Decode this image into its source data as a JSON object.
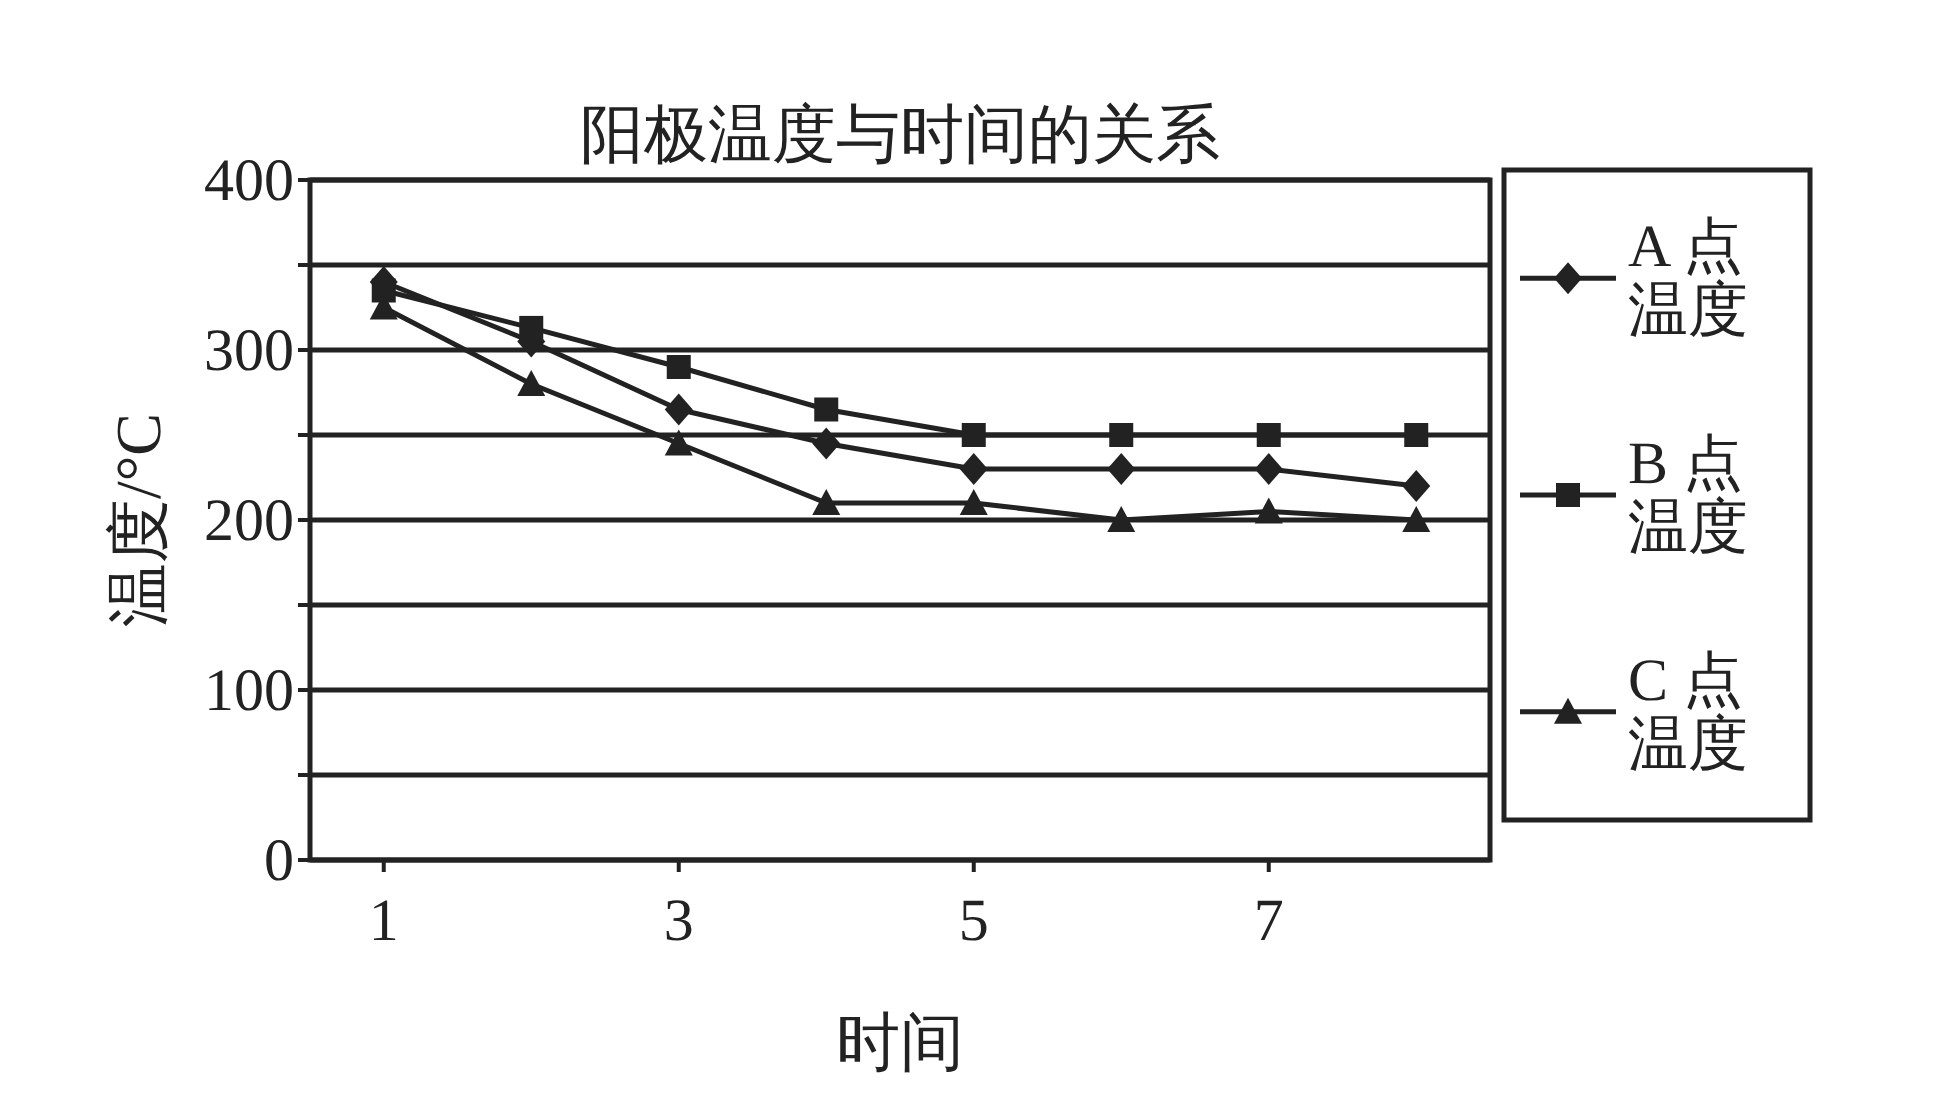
{
  "chart_data": {
    "type": "line",
    "title": "阳极温度与时间的关系",
    "xlabel": "时间",
    "ylabel": "温度/°C",
    "x": [
      1,
      2,
      3,
      4,
      5,
      6,
      7,
      8
    ],
    "xlim": [
      0.5,
      8.5
    ],
    "xticks": [
      1,
      3,
      5,
      7
    ],
    "ylim": [
      0,
      400
    ],
    "yticks": [
      0,
      {
        "value": 50,
        "label": null
      },
      100,
      {
        "value": 150,
        "label": null
      },
      200,
      {
        "value": 250,
        "label": null
      },
      300,
      {
        "value": 350,
        "label": null
      },
      400
    ],
    "grid": "y",
    "legend": "right",
    "series": [
      {
        "name": "A 点温度",
        "color": "#222222",
        "marker": "diamond",
        "values": [
          340,
          305,
          265,
          245,
          230,
          230,
          230,
          220
        ]
      },
      {
        "name": "B 点温度",
        "color": "#222222",
        "marker": "square",
        "values": [
          335,
          313,
          290,
          265,
          250,
          250,
          250,
          250
        ]
      },
      {
        "name": "C 点温度",
        "color": "#222222",
        "marker": "triangle",
        "values": [
          325,
          280,
          245,
          210,
          210,
          200,
          205,
          200
        ]
      }
    ]
  }
}
